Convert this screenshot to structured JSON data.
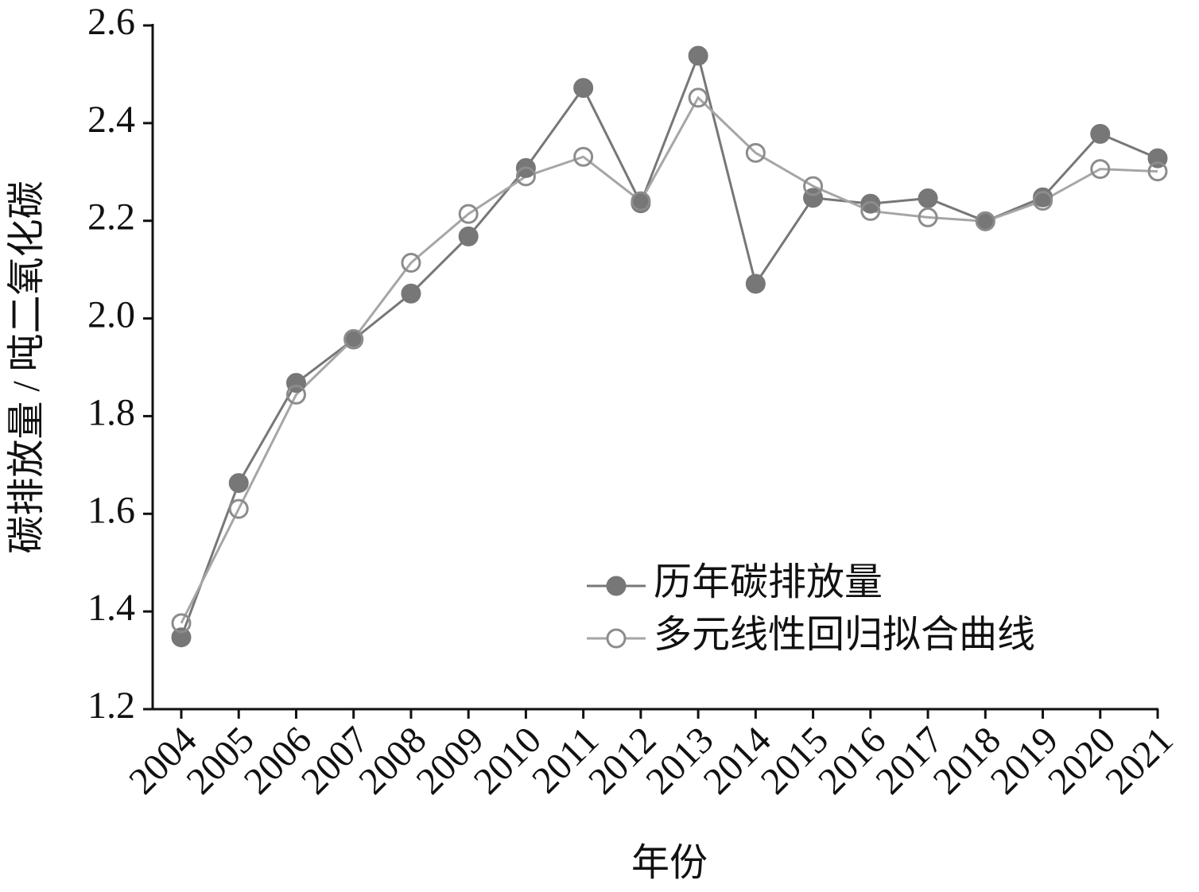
{
  "chart_data": {
    "type": "line",
    "x_label": "年份",
    "y_label": "碳排放量 / 吨二氧化碳",
    "categories": [
      "2004",
      "2005",
      "2006",
      "2007",
      "2008",
      "2009",
      "2010",
      "2011",
      "2012",
      "2013",
      "2014",
      "2015",
      "2016",
      "2017",
      "2018",
      "2019",
      "2020",
      "2021"
    ],
    "series": [
      {
        "name": "历年碳排放量",
        "color": "#777777",
        "marker": "filled",
        "values": [
          1.347,
          1.663,
          1.868,
          1.957,
          2.051,
          2.168,
          2.308,
          2.472,
          2.236,
          2.538,
          2.071,
          2.247,
          2.235,
          2.246,
          2.199,
          2.248,
          2.378,
          2.328
        ]
      },
      {
        "name": "多元线性回归拟合曲线",
        "color": "#a6a6a6",
        "marker": "open",
        "values": [
          1.376,
          1.61,
          1.844,
          1.958,
          2.114,
          2.214,
          2.291,
          2.331,
          2.24,
          2.452,
          2.339,
          2.271,
          2.22,
          2.207,
          2.199,
          2.241,
          2.306,
          2.301
        ]
      }
    ],
    "ylim": [
      1.2,
      2.6
    ],
    "yticks": [
      1.2,
      1.4,
      1.6,
      1.8,
      {
        "value": 2,
        "label": "2.0"
      },
      2.2,
      2.4,
      2.6
    ],
    "legend": "lower right"
  }
}
